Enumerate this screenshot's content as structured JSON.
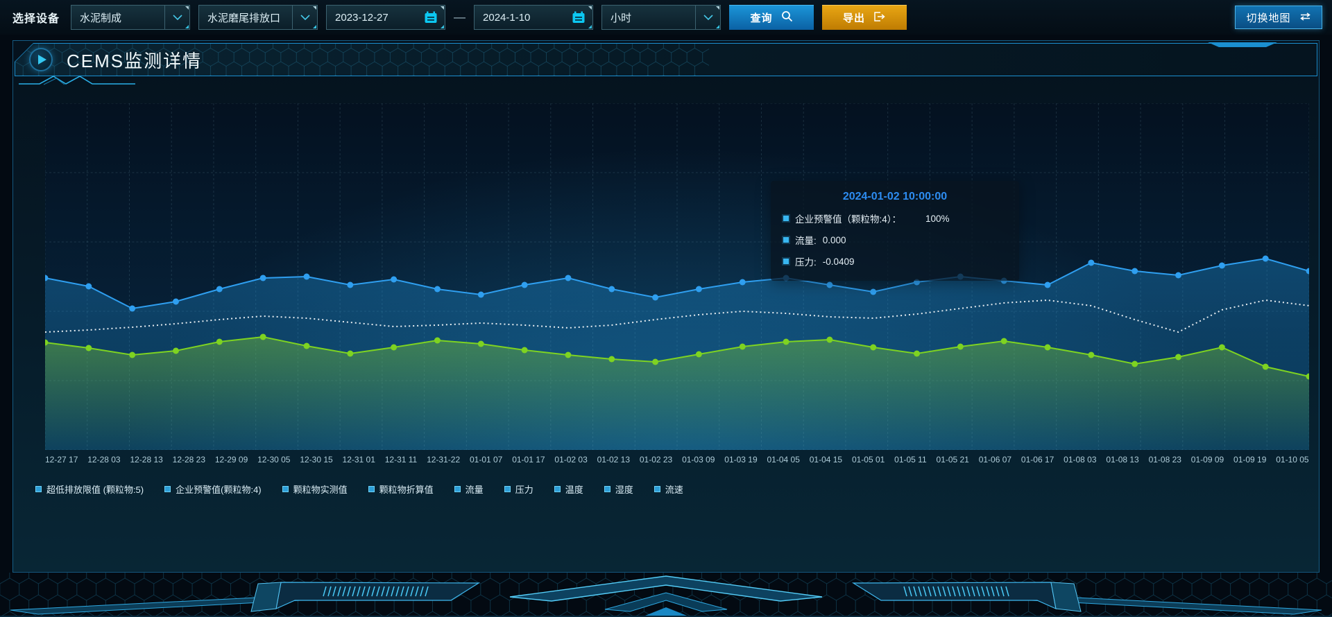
{
  "toolbar": {
    "device_label": "选择设备",
    "device_select": "水泥制成",
    "outlet_select": "水泥磨尾排放口",
    "date_start": "2023-12-27",
    "date_separator": "—",
    "date_end": "2024-1-10",
    "interval_select": "小时",
    "query_label": "查询",
    "export_label": "导出",
    "switch_map_label": "切换地图"
  },
  "panel": {
    "title": "CEMS监测详情"
  },
  "tooltip": {
    "title": "2024-01-02 10:00:00",
    "rows": [
      {
        "label": "企业预警值（颗粒物:4）：",
        "value": "100%"
      },
      {
        "label": "流量:",
        "value": "0.000"
      },
      {
        "label": "压力:",
        "value": "-0.0409"
      }
    ]
  },
  "chart_data": {
    "type": "line",
    "title": "",
    "xlabel": "",
    "ylabel": "",
    "grid": "dashed",
    "legend_position": "bottom",
    "y_axis_visible": false,
    "value_scale": "percent of plot height (no y-axis ticks shown)",
    "x_labels": [
      "12-27 17",
      "12-28 03",
      "12-28 13",
      "12-28 23",
      "12-29 09",
      "12-30 05",
      "12-30 15",
      "12-31 01",
      "12-31 11",
      "12-31-22",
      "01-01 07",
      "01-01 17",
      "01-02 03",
      "01-02 13",
      "01-02 23",
      "01-03 09",
      "01-03 19",
      "01-04 05",
      "01-04 15",
      "01-05 01",
      "01-05 11",
      "01-05 21",
      "01-06 07",
      "01-06 17",
      "01-08 03",
      "01-08 13",
      "01-08 23",
      "01-09 09",
      "01-09 19",
      "01-10 05"
    ],
    "series": [
      {
        "name": "blue_line",
        "color": "#2f9ff0",
        "style": "solid",
        "markers": true,
        "area": true,
        "values": [
          49.6,
          47.2,
          40.8,
          42.8,
          46.4,
          49.6,
          50.0,
          47.6,
          49.2,
          46.4,
          44.8,
          47.6,
          49.6,
          46.4,
          44.0,
          46.4,
          48.4,
          49.6,
          47.6,
          45.6,
          48.4,
          50.0,
          48.8,
          47.6,
          54.0,
          51.6,
          50.4,
          53.2,
          55.2,
          51.6
        ]
      },
      {
        "name": "white_dotted_line",
        "color": "#e8eef2",
        "style": "dotted",
        "markers": false,
        "area": false,
        "values": [
          34.0,
          34.6,
          35.4,
          36.4,
          37.6,
          38.6,
          38.0,
          36.8,
          35.6,
          36.0,
          36.6,
          36.0,
          35.2,
          36.0,
          37.6,
          39.0,
          40.0,
          39.4,
          38.4,
          38.0,
          39.2,
          40.8,
          42.4,
          43.2,
          41.6,
          37.6,
          34.0,
          40.4,
          43.2,
          41.6
        ]
      },
      {
        "name": "green_line",
        "color": "#7ed321",
        "style": "solid",
        "markers": true,
        "area": true,
        "values": [
          31.0,
          29.4,
          27.4,
          28.6,
          31.2,
          32.6,
          30.0,
          27.8,
          29.6,
          31.6,
          30.6,
          28.8,
          27.4,
          26.2,
          25.4,
          27.6,
          29.8,
          31.2,
          31.8,
          29.6,
          27.8,
          29.8,
          31.4,
          29.6,
          27.4,
          24.8,
          26.8,
          29.6,
          24.0,
          21.2
        ]
      }
    ],
    "legend": [
      "超低排放限值 (颗粒物:5)",
      "企业预警值(颗粒物:4)",
      "颗粒物实测值",
      "颗粒物折算值",
      "流量",
      "压力",
      "温度",
      "湿度",
      "流速"
    ]
  },
  "icons": {
    "chevron_down": "v-shape chevron (cyan)",
    "calendar": "cyan calendar glyph",
    "search": "magnifier",
    "export": "box with right arrow",
    "swap": "double horizontal arrows",
    "play": "triangle in circle"
  },
  "colors": {
    "accent_blue": "#1b8fd0",
    "query_button": "#1486cc",
    "export_button": "#d9940e",
    "tooltip_title": "#2d8cf0",
    "line_blue": "#2f9ff0",
    "line_green": "#7ed321",
    "line_white": "#e8eef2",
    "legend_marker": "#2d9fd8"
  }
}
